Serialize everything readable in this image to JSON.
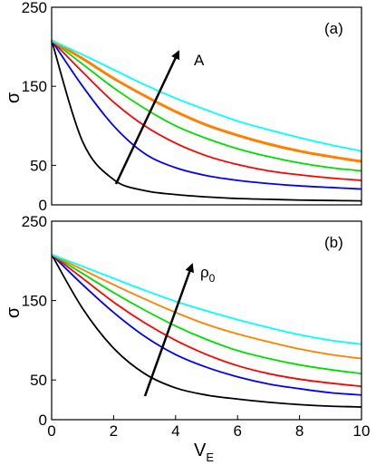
{
  "chart_data": [
    {
      "type": "line",
      "panel_label": "(a)",
      "annotation": "A",
      "xlabel": "",
      "ylabel": "σ",
      "xlim": [
        0,
        10
      ],
      "ylim": [
        0,
        250
      ],
      "xticks": [],
      "yticks": [
        0,
        50,
        150,
        250
      ],
      "grid": false,
      "x": [
        0,
        1,
        2,
        3,
        4,
        5,
        6,
        7,
        8,
        9,
        10
      ],
      "series": [
        {
          "color": "#000000",
          "width": 1.8,
          "values": [
            208,
            80,
            32,
            18,
            13,
            10,
            8,
            7,
            6,
            5.5,
            5
          ]
        },
        {
          "color": "#0000ff",
          "width": 1.8,
          "values": [
            208,
            150,
            100,
            65,
            47,
            37,
            31,
            27,
            24,
            22,
            20
          ]
        },
        {
          "color": "#ff0000",
          "width": 1.8,
          "values": [
            208,
            168,
            130,
            100,
            78,
            62,
            51,
            43,
            38,
            34,
            31
          ]
        },
        {
          "color": "#00dd00",
          "width": 1.8,
          "values": [
            208,
            178,
            148,
            122,
            100,
            84,
            71,
            61,
            53,
            47,
            43
          ]
        },
        {
          "color": "#ff8000",
          "width": 3.0,
          "values": [
            208,
            185,
            160,
            138,
            118,
            101,
            88,
            77,
            68,
            61,
            55
          ]
        },
        {
          "color": "#00ffff",
          "width": 1.8,
          "values": [
            208,
            190,
            171,
            152,
            135,
            120,
            106,
            95,
            85,
            76,
            68
          ]
        }
      ]
    },
    {
      "type": "line",
      "panel_label": "(b)",
      "annotation": "ρ",
      "annotation_sub": "0",
      "xlabel": "V",
      "xlabel_sub": "E",
      "ylabel": "σ",
      "xlim": [
        0,
        10
      ],
      "ylim": [
        0,
        250
      ],
      "xticks": [
        0,
        2,
        4,
        6,
        8,
        10
      ],
      "yticks": [
        0,
        50,
        150,
        250
      ],
      "grid": false,
      "x": [
        0,
        1,
        2,
        3,
        4,
        5,
        6,
        7,
        8,
        9,
        10
      ],
      "series": [
        {
          "color": "#000000",
          "width": 1.8,
          "values": [
            208,
            140,
            90,
            58,
            40,
            31,
            26,
            22,
            19,
            17,
            16
          ]
        },
        {
          "color": "#0000ff",
          "width": 1.8,
          "values": [
            208,
            170,
            135,
            105,
            82,
            66,
            54,
            45,
            39,
            34,
            31
          ]
        },
        {
          "color": "#ff0000",
          "width": 1.8,
          "values": [
            208,
            178,
            148,
            122,
            100,
            82,
            68,
            58,
            51,
            46,
            42
          ]
        },
        {
          "color": "#00dd00",
          "width": 1.8,
          "values": [
            208,
            184,
            160,
            138,
            118,
            101,
            87,
            77,
            69,
            63,
            58
          ]
        },
        {
          "color": "#ff8000",
          "width": 1.8,
          "values": [
            208,
            189,
            170,
            152,
            135,
            120,
            108,
            98,
            89,
            82,
            77
          ]
        },
        {
          "color": "#00ffff",
          "width": 1.8,
          "values": [
            208,
            193,
            178,
            163,
            149,
            137,
            126,
            116,
            107,
            100,
            95
          ]
        }
      ]
    }
  ]
}
